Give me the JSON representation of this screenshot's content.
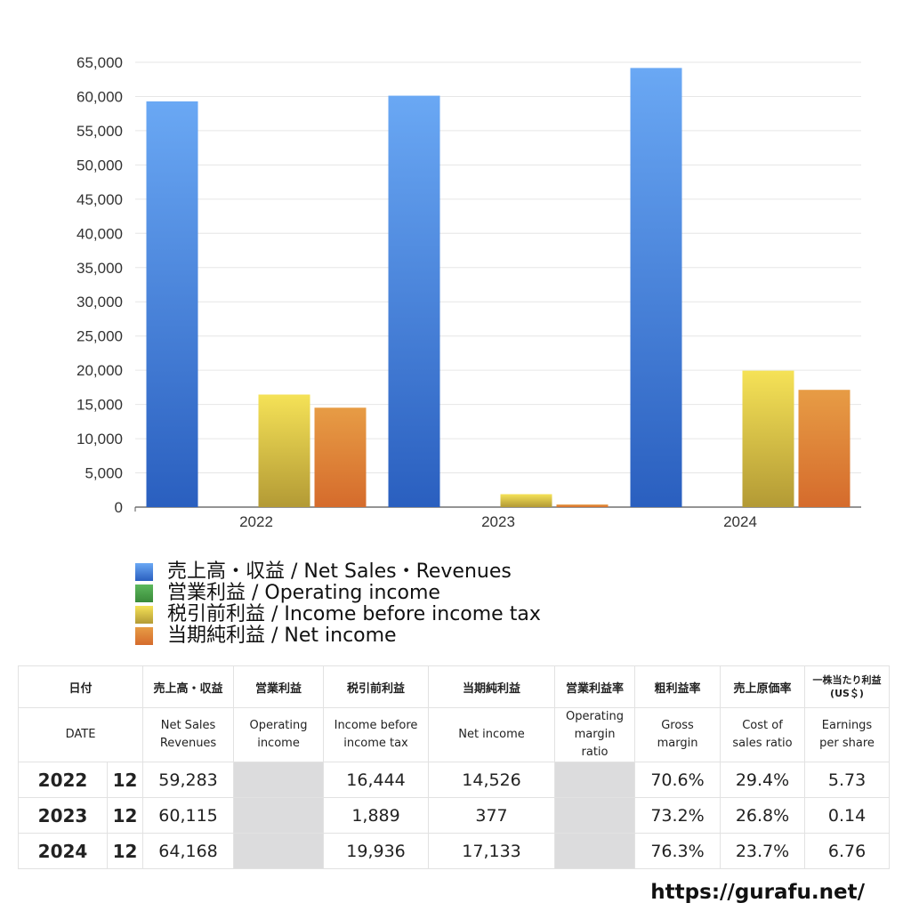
{
  "chart_data": {
    "type": "bar",
    "categories": [
      "2022",
      "2023",
      "2024"
    ],
    "ylim": [
      0,
      65000
    ],
    "yticks": [
      0,
      5000,
      10000,
      15000,
      20000,
      25000,
      30000,
      35000,
      40000,
      45000,
      50000,
      55000,
      60000,
      65000
    ],
    "ytick_labels": [
      "0",
      "5,000",
      "10,000",
      "15,000",
      "20,000",
      "25,000",
      "30,000",
      "35,000",
      "40,000",
      "45,000",
      "50,000",
      "55,000",
      "60,000",
      "65,000"
    ],
    "series": [
      {
        "name": "売上高・収益 / Net Sales・Revenues",
        "values": [
          59283,
          60115,
          64168
        ],
        "color_top": "#6aa8f4",
        "color_bottom": "#2a5fbf"
      },
      {
        "name": "営業利益 / Operating income",
        "values": [
          null,
          null,
          null
        ],
        "color_top": "#5cb85c",
        "color_bottom": "#3a8a3a"
      },
      {
        "name": "税引前利益 / Income before income tax",
        "values": [
          16444,
          1889,
          19936
        ],
        "color_top": "#f5e257",
        "color_bottom": "#b39a35"
      },
      {
        "name": "当期純利益 / Net income",
        "values": [
          14526,
          377,
          17133
        ],
        "color_top": "#e79c45",
        "color_bottom": "#d56b2c"
      }
    ]
  },
  "table": {
    "header_jp": [
      "日付",
      "売上高・収益",
      "営業利益",
      "税引前利益",
      "当期純利益",
      "営業利益率",
      "粗利益率",
      "売上原価率",
      "一株当たり利益"
    ],
    "eps_unit": "(US＄)",
    "header_en": [
      "DATE",
      [
        "Net Sales",
        "Revenues"
      ],
      [
        "Operating",
        "income"
      ],
      [
        "Income before",
        "income tax"
      ],
      [
        "Net income"
      ],
      [
        "Operating",
        "margin",
        "ratio"
      ],
      [
        "Gross",
        "margin"
      ],
      [
        "Cost of",
        "sales ratio"
      ],
      [
        "Earnings",
        "per share"
      ]
    ],
    "rows": [
      {
        "year": "2022",
        "month": "12",
        "sales": "59,283",
        "op": "",
        "pretax": "16,444",
        "net": "14,526",
        "opm": "",
        "gross": "70.6%",
        "cost": "29.4%",
        "eps": "5.73"
      },
      {
        "year": "2023",
        "month": "12",
        "sales": "60,115",
        "op": "",
        "pretax": "1,889",
        "net": "377",
        "opm": "",
        "gross": "73.2%",
        "cost": "26.8%",
        "eps": "0.14"
      },
      {
        "year": "2024",
        "month": "12",
        "sales": "64,168",
        "op": "",
        "pretax": "19,936",
        "net": "17,133",
        "opm": "",
        "gross": "76.3%",
        "cost": "23.7%",
        "eps": "6.76"
      }
    ]
  },
  "footer_url": "https://gurafu.net/"
}
